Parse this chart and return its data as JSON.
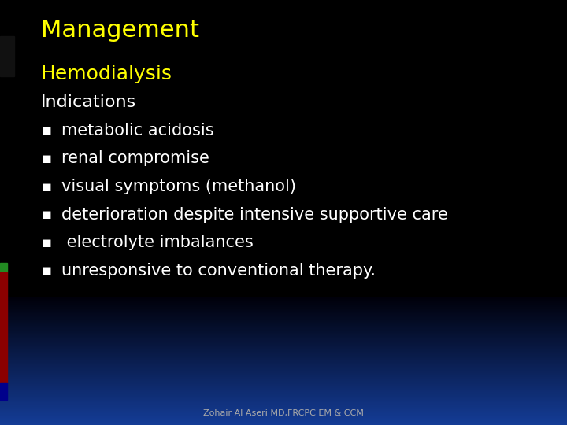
{
  "title": "Management",
  "title_color": "#FFFF00",
  "title_fontsize": 22,
  "subheading": "Hemodialysis",
  "subheading_color": "#FFFF00",
  "subheading_fontsize": 18,
  "indications_label": "Indications",
  "indications_color": "#FFFFFF",
  "indications_fontsize": 16,
  "bullet_color": "#FFFFFF",
  "bullet_fontsize": 15,
  "bullets": [
    "metabolic acidosis",
    "renal compromise",
    "visual symptoms (methanol)",
    "deterioration despite intensive supportive care",
    " electrolyte imbalances",
    "unresponsive to conventional therapy."
  ],
  "footer": "Zohair Al Aseri MD,FRCPC EM & CCM",
  "footer_color": "#AAAAAA",
  "footer_fontsize": 8
}
